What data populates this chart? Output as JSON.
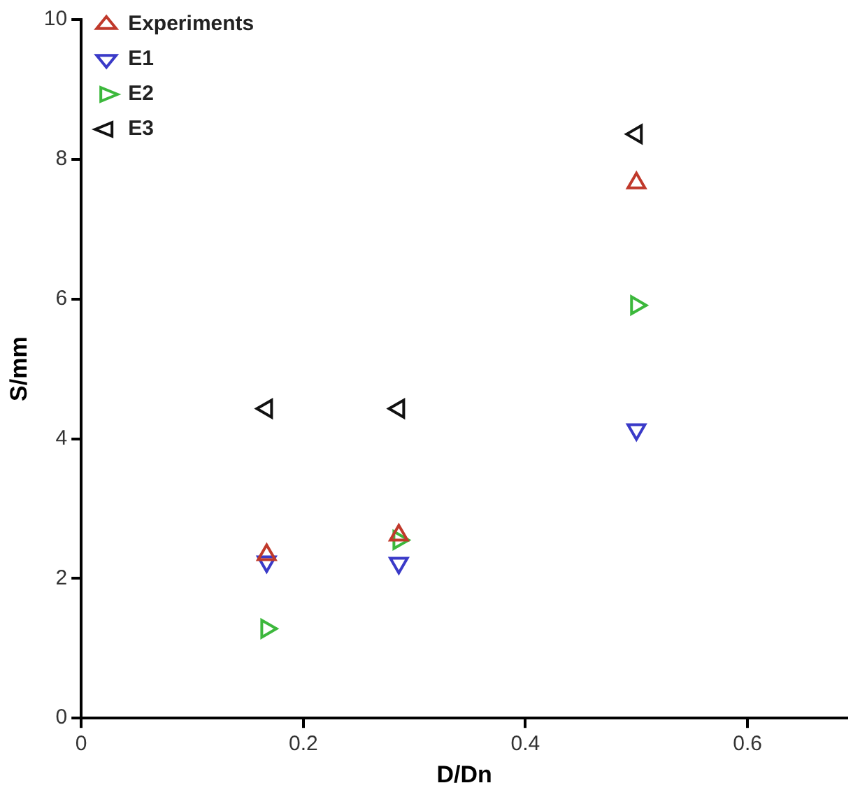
{
  "chart_data": {
    "type": "scatter",
    "xlabel": "D/Dn",
    "ylabel": "S/mm",
    "x": [
      0.167,
      0.286,
      0.5
    ],
    "series": [
      {
        "name": "Experiments",
        "color": "#c0392b",
        "values": [
          2.34,
          2.62,
          7.66
        ]
      },
      {
        "name": "E1",
        "color": "#3a3ac8",
        "values": [
          2.24,
          2.22,
          4.13
        ]
      },
      {
        "name": "E2",
        "color": "#3cb83c",
        "values": [
          1.28,
          2.55,
          5.91
        ]
      },
      {
        "name": "E3",
        "color": "#111111",
        "values": [
          4.43,
          4.43,
          8.36
        ]
      }
    ],
    "xlim": [
      0,
      0.69
    ],
    "xticks": [
      0,
      0.2,
      0.4,
      0.6
    ],
    "ylim": [
      0,
      10
    ],
    "yticks": [
      0,
      2,
      4,
      6,
      8,
      10
    ],
    "grid": false,
    "legend": "top left",
    "marker": "triangle"
  }
}
